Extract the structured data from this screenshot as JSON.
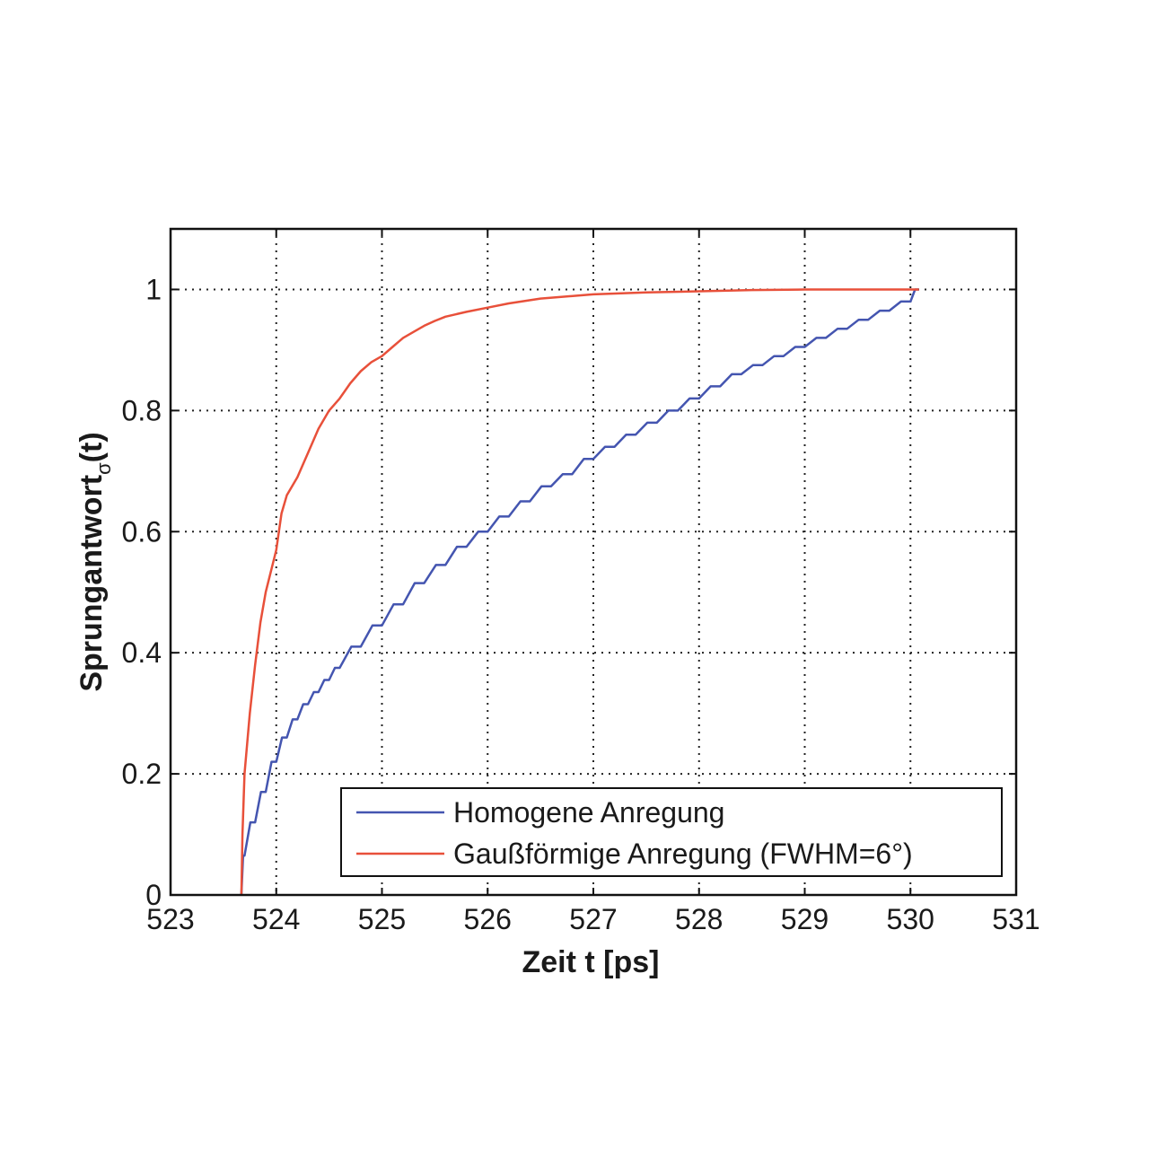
{
  "chart_data": {
    "type": "line",
    "xlabel": "Zeit t [ps]",
    "ylabel_main": "Sprungantwort",
    "ylabel_sub": "σ",
    "ylabel_tail": "(t)",
    "xlim": [
      523,
      531
    ],
    "ylim": [
      0,
      1.1
    ],
    "xticks": [
      523,
      524,
      525,
      526,
      527,
      528,
      529,
      530,
      531
    ],
    "yticks": [
      0,
      0.2,
      0.4,
      0.6,
      0.8,
      1
    ],
    "ytick_labels": [
      "0",
      "0.2",
      "0.4",
      "0.6",
      "0.8",
      "1"
    ],
    "grid": true,
    "legend_position": "bottom-right",
    "series": [
      {
        "name": "Homogene Anregung",
        "color": "#4455b0",
        "style": "staircase",
        "x": [
          523.67,
          523.7,
          523.8,
          523.9,
          524.0,
          524.1,
          524.2,
          524.3,
          524.4,
          524.5,
          524.6,
          524.8,
          525.0,
          525.2,
          525.4,
          525.6,
          525.8,
          526.0,
          526.2,
          526.4,
          526.6,
          526.8,
          527.0,
          527.2,
          527.4,
          527.6,
          527.8,
          528.0,
          528.2,
          528.4,
          528.6,
          528.8,
          529.0,
          529.2,
          529.4,
          529.6,
          529.8,
          530.0,
          530.08
        ],
        "y": [
          0.0,
          0.065,
          0.12,
          0.17,
          0.22,
          0.26,
          0.29,
          0.315,
          0.335,
          0.355,
          0.375,
          0.41,
          0.445,
          0.48,
          0.515,
          0.545,
          0.575,
          0.6,
          0.625,
          0.65,
          0.675,
          0.695,
          0.72,
          0.74,
          0.76,
          0.78,
          0.8,
          0.82,
          0.84,
          0.86,
          0.875,
          0.89,
          0.905,
          0.92,
          0.935,
          0.95,
          0.965,
          0.98,
          1.0
        ]
      },
      {
        "name": "Gaußförmige Anregung (FWHM=6°)",
        "color": "#e8503a",
        "style": "line",
        "x": [
          523.67,
          523.68,
          523.7,
          523.75,
          523.8,
          523.85,
          523.9,
          524.0,
          524.05,
          524.1,
          524.2,
          524.3,
          524.4,
          524.5,
          524.6,
          524.7,
          524.8,
          524.9,
          525.0,
          525.1,
          525.2,
          525.3,
          525.4,
          525.5,
          525.6,
          525.8,
          526.0,
          526.2,
          526.5,
          527.0,
          527.5,
          528.0,
          528.5,
          529.0,
          529.5,
          530.0,
          530.08
        ],
        "y": [
          0.0,
          0.1,
          0.2,
          0.3,
          0.38,
          0.45,
          0.5,
          0.57,
          0.63,
          0.66,
          0.69,
          0.73,
          0.77,
          0.8,
          0.82,
          0.845,
          0.865,
          0.88,
          0.89,
          0.905,
          0.92,
          0.93,
          0.94,
          0.948,
          0.955,
          0.963,
          0.97,
          0.977,
          0.985,
          0.992,
          0.995,
          0.997,
          0.999,
          1.0,
          1.0,
          1.0,
          1.0
        ]
      }
    ]
  }
}
